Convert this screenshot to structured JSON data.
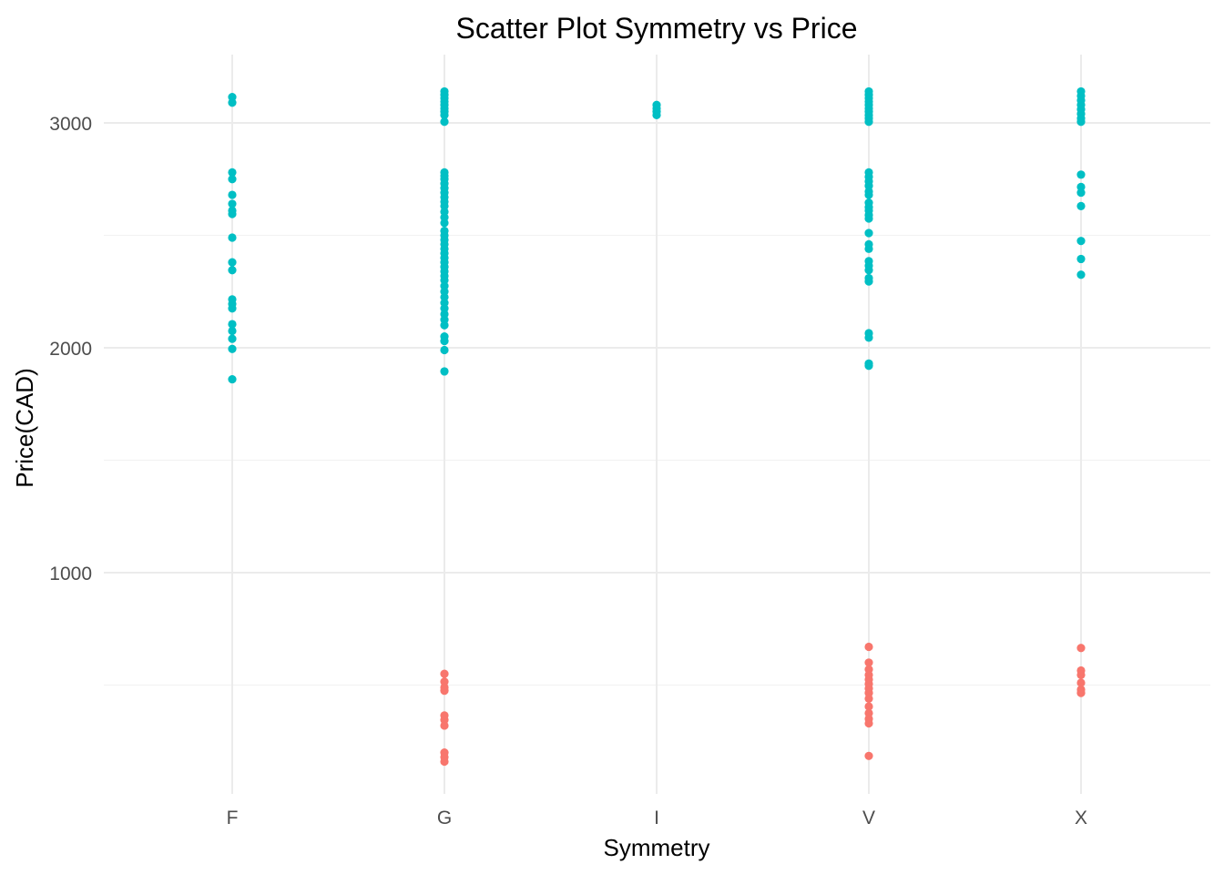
{
  "chart_data": {
    "type": "scatter",
    "title": "Scatter Plot Symmetry vs Price",
    "xlabel": "Symmetry",
    "ylabel": "Price(CAD)",
    "categories": [
      "F",
      "G",
      "I",
      "V",
      "X"
    ],
    "ylim": [
      0,
      3260
    ],
    "yticks": [
      1000,
      2000,
      3000
    ],
    "grid": true,
    "legend": "none",
    "series": [
      {
        "color": "#00BFC4",
        "points": [
          {
            "x": "F",
            "y": 3115
          },
          {
            "x": "F",
            "y": 3090
          },
          {
            "x": "F",
            "y": 2780
          },
          {
            "x": "F",
            "y": 2750
          },
          {
            "x": "F",
            "y": 2680
          },
          {
            "x": "F",
            "y": 2640
          },
          {
            "x": "F",
            "y": 2610
          },
          {
            "x": "F",
            "y": 2595
          },
          {
            "x": "F",
            "y": 2490
          },
          {
            "x": "F",
            "y": 2380
          },
          {
            "x": "F",
            "y": 2345
          },
          {
            "x": "F",
            "y": 2215
          },
          {
            "x": "F",
            "y": 2195
          },
          {
            "x": "F",
            "y": 2175
          },
          {
            "x": "F",
            "y": 2105
          },
          {
            "x": "F",
            "y": 2075
          },
          {
            "x": "F",
            "y": 2040
          },
          {
            "x": "F",
            "y": 1995
          },
          {
            "x": "F",
            "y": 1860
          },
          {
            "x": "G",
            "y": 3140
          },
          {
            "x": "G",
            "y": 3125
          },
          {
            "x": "G",
            "y": 3110
          },
          {
            "x": "G",
            "y": 3095
          },
          {
            "x": "G",
            "y": 3080
          },
          {
            "x": "G",
            "y": 3065
          },
          {
            "x": "G",
            "y": 3050
          },
          {
            "x": "G",
            "y": 3035
          },
          {
            "x": "G",
            "y": 3005
          },
          {
            "x": "G",
            "y": 2780
          },
          {
            "x": "G",
            "y": 2765
          },
          {
            "x": "G",
            "y": 2750
          },
          {
            "x": "G",
            "y": 2730
          },
          {
            "x": "G",
            "y": 2710
          },
          {
            "x": "G",
            "y": 2690
          },
          {
            "x": "G",
            "y": 2670
          },
          {
            "x": "G",
            "y": 2650
          },
          {
            "x": "G",
            "y": 2630
          },
          {
            "x": "G",
            "y": 2605
          },
          {
            "x": "G",
            "y": 2580
          },
          {
            "x": "G",
            "y": 2555
          },
          {
            "x": "G",
            "y": 2520
          },
          {
            "x": "G",
            "y": 2500
          },
          {
            "x": "G",
            "y": 2480
          },
          {
            "x": "G",
            "y": 2460
          },
          {
            "x": "G",
            "y": 2440
          },
          {
            "x": "G",
            "y": 2420
          },
          {
            "x": "G",
            "y": 2400
          },
          {
            "x": "G",
            "y": 2380
          },
          {
            "x": "G",
            "y": 2360
          },
          {
            "x": "G",
            "y": 2340
          },
          {
            "x": "G",
            "y": 2320
          },
          {
            "x": "G",
            "y": 2300
          },
          {
            "x": "G",
            "y": 2275
          },
          {
            "x": "G",
            "y": 2250
          },
          {
            "x": "G",
            "y": 2225
          },
          {
            "x": "G",
            "y": 2200
          },
          {
            "x": "G",
            "y": 2175
          },
          {
            "x": "G",
            "y": 2150
          },
          {
            "x": "G",
            "y": 2125
          },
          {
            "x": "G",
            "y": 2100
          },
          {
            "x": "G",
            "y": 2050
          },
          {
            "x": "G",
            "y": 2030
          },
          {
            "x": "G",
            "y": 1990
          },
          {
            "x": "G",
            "y": 1895
          },
          {
            "x": "I",
            "y": 3080
          },
          {
            "x": "I",
            "y": 3065
          },
          {
            "x": "I",
            "y": 3050
          },
          {
            "x": "I",
            "y": 3035
          },
          {
            "x": "V",
            "y": 3140
          },
          {
            "x": "V",
            "y": 3125
          },
          {
            "x": "V",
            "y": 3110
          },
          {
            "x": "V",
            "y": 3095
          },
          {
            "x": "V",
            "y": 3080
          },
          {
            "x": "V",
            "y": 3065
          },
          {
            "x": "V",
            "y": 3050
          },
          {
            "x": "V",
            "y": 3035
          },
          {
            "x": "V",
            "y": 3020
          },
          {
            "x": "V",
            "y": 3005
          },
          {
            "x": "V",
            "y": 2780
          },
          {
            "x": "V",
            "y": 2760
          },
          {
            "x": "V",
            "y": 2740
          },
          {
            "x": "V",
            "y": 2720
          },
          {
            "x": "V",
            "y": 2695
          },
          {
            "x": "V",
            "y": 2680
          },
          {
            "x": "V",
            "y": 2645
          },
          {
            "x": "V",
            "y": 2625
          },
          {
            "x": "V",
            "y": 2610
          },
          {
            "x": "V",
            "y": 2590
          },
          {
            "x": "V",
            "y": 2575
          },
          {
            "x": "V",
            "y": 2510
          },
          {
            "x": "V",
            "y": 2460
          },
          {
            "x": "V",
            "y": 2440
          },
          {
            "x": "V",
            "y": 2385
          },
          {
            "x": "V",
            "y": 2365
          },
          {
            "x": "V",
            "y": 2345
          },
          {
            "x": "V",
            "y": 2310
          },
          {
            "x": "V",
            "y": 2295
          },
          {
            "x": "V",
            "y": 2065
          },
          {
            "x": "V",
            "y": 2045
          },
          {
            "x": "V",
            "y": 1930
          },
          {
            "x": "V",
            "y": 1920
          },
          {
            "x": "X",
            "y": 3140
          },
          {
            "x": "X",
            "y": 3120
          },
          {
            "x": "X",
            "y": 3100
          },
          {
            "x": "X",
            "y": 3080
          },
          {
            "x": "X",
            "y": 3060
          },
          {
            "x": "X",
            "y": 3040
          },
          {
            "x": "X",
            "y": 3020
          },
          {
            "x": "X",
            "y": 3005
          },
          {
            "x": "X",
            "y": 2770
          },
          {
            "x": "X",
            "y": 2715
          },
          {
            "x": "X",
            "y": 2690
          },
          {
            "x": "X",
            "y": 2630
          },
          {
            "x": "X",
            "y": 2475
          },
          {
            "x": "X",
            "y": 2395
          },
          {
            "x": "X",
            "y": 2325
          }
        ]
      },
      {
        "color": "#F8766D",
        "points": [
          {
            "x": "G",
            "y": 550
          },
          {
            "x": "G",
            "y": 515
          },
          {
            "x": "G",
            "y": 490
          },
          {
            "x": "G",
            "y": 475
          },
          {
            "x": "G",
            "y": 365
          },
          {
            "x": "G",
            "y": 345
          },
          {
            "x": "G",
            "y": 320
          },
          {
            "x": "G",
            "y": 200
          },
          {
            "x": "G",
            "y": 180
          },
          {
            "x": "G",
            "y": 160
          },
          {
            "x": "V",
            "y": 670
          },
          {
            "x": "V",
            "y": 600
          },
          {
            "x": "V",
            "y": 570
          },
          {
            "x": "V",
            "y": 545
          },
          {
            "x": "V",
            "y": 525
          },
          {
            "x": "V",
            "y": 505
          },
          {
            "x": "V",
            "y": 485
          },
          {
            "x": "V",
            "y": 465
          },
          {
            "x": "V",
            "y": 440
          },
          {
            "x": "V",
            "y": 405
          },
          {
            "x": "V",
            "y": 375
          },
          {
            "x": "V",
            "y": 350
          },
          {
            "x": "V",
            "y": 330
          },
          {
            "x": "V",
            "y": 185
          },
          {
            "x": "X",
            "y": 665
          },
          {
            "x": "X",
            "y": 565
          },
          {
            "x": "X",
            "y": 545
          },
          {
            "x": "X",
            "y": 510
          },
          {
            "x": "X",
            "y": 480
          },
          {
            "x": "X",
            "y": 465
          }
        ]
      }
    ]
  }
}
